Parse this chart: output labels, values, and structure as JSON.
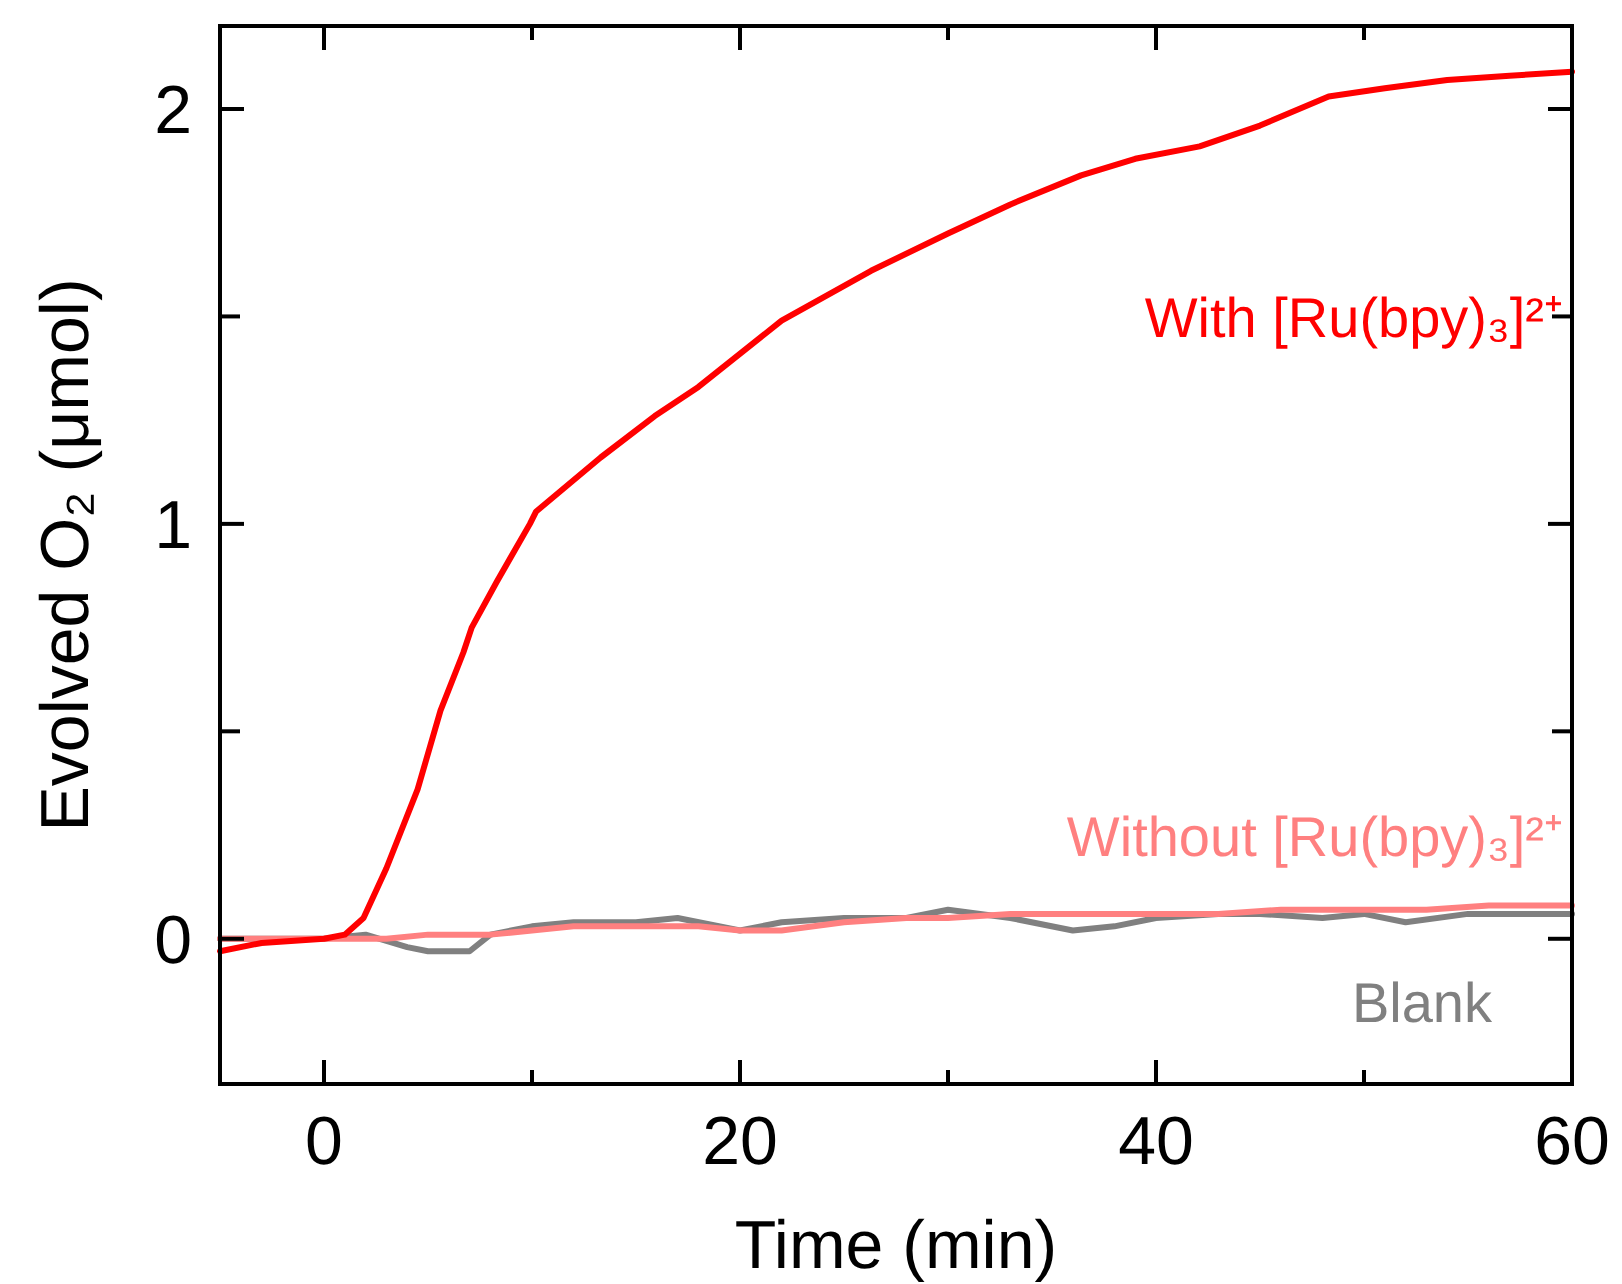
{
  "chart_data": {
    "type": "line",
    "xlabel": "Time (min)",
    "ylabel": "Evolved O₂ (μmol)",
    "xlim": [
      -5,
      60
    ],
    "xticks": [
      0,
      {
        "value": 10,
        "label": null
      },
      20,
      {
        "value": 30,
        "label": null
      },
      40,
      {
        "value": 50,
        "label": null
      },
      60
    ],
    "ylim": [
      -0.35,
      2.2
    ],
    "yticks": [
      0,
      {
        "value": 0.5,
        "label": null
      },
      1,
      {
        "value": 1.5,
        "label": null
      },
      2
    ],
    "grid": false,
    "marker": "none",
    "line_style": "solid",
    "series": [
      {
        "name": "Blank",
        "color": "#808080",
        "x": [
          -5,
          -2,
          0,
          2,
          4,
          5,
          6,
          7,
          8,
          10,
          12,
          15,
          17,
          20,
          22,
          25,
          28,
          30,
          33,
          36,
          38,
          40,
          43,
          45,
          48,
          50,
          52,
          55,
          58,
          60
        ],
        "values": [
          0.0,
          0.0,
          0.0,
          0.01,
          -0.02,
          -0.03,
          -0.03,
          -0.03,
          0.01,
          0.03,
          0.04,
          0.04,
          0.05,
          0.02,
          0.04,
          0.05,
          0.05,
          0.07,
          0.05,
          0.02,
          0.03,
          0.05,
          0.06,
          0.06,
          0.05,
          0.06,
          0.04,
          0.06,
          0.06,
          0.06
        ]
      },
      {
        "name": "Without [Ru(bpy)₃]²⁺",
        "color": "#ff8080",
        "x": [
          -5,
          -2,
          0,
          3,
          5,
          8,
          10,
          12,
          15,
          18,
          20,
          22,
          25,
          28,
          30,
          33,
          36,
          40,
          43,
          46,
          50,
          53,
          56,
          60
        ],
        "values": [
          0.0,
          0.0,
          0.0,
          0.0,
          0.01,
          0.01,
          0.02,
          0.03,
          0.03,
          0.03,
          0.02,
          0.02,
          0.04,
          0.05,
          0.05,
          0.06,
          0.06,
          0.06,
          0.06,
          0.07,
          0.07,
          0.07,
          0.08,
          0.08
        ]
      },
      {
        "name": "With [Ru(bpy)₃]²⁺",
        "color": "#ff0000",
        "x": [
          -5,
          -3,
          0,
          1,
          1.9,
          3,
          4.5,
          5.6,
          6.7,
          7.1,
          8.3,
          9.9,
          10.2,
          13.3,
          15.9,
          18,
          22,
          26.3,
          30,
          33,
          36.4,
          39,
          42.1,
          45,
          48.3,
          51,
          54,
          57,
          60
        ],
        "values": [
          -0.03,
          -0.01,
          0.0,
          0.01,
          0.05,
          0.17,
          0.36,
          0.55,
          0.69,
          0.75,
          0.86,
          1.0,
          1.03,
          1.16,
          1.26,
          1.33,
          1.49,
          1.61,
          1.7,
          1.77,
          1.84,
          1.88,
          1.91,
          1.96,
          2.03,
          2.05,
          2.07,
          2.08,
          2.09
        ]
      }
    ]
  }
}
